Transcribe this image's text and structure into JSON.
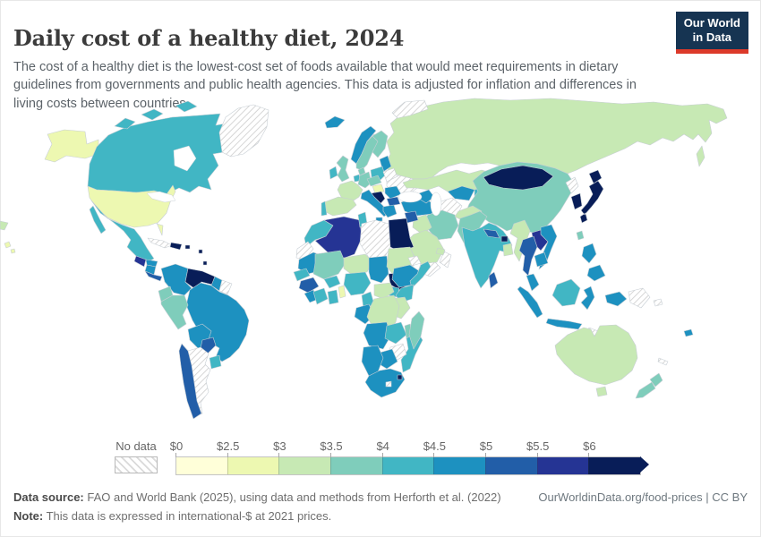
{
  "header": {
    "title": "Daily cost of a healthy diet, 2024",
    "subtitle": "The cost of a healthy diet is the lowest-cost set of foods available that would meet requirements in dietary guidelines from governments and public health agencies. This data is adjusted for inflation and differences in living costs between countries.",
    "logo": {
      "line1": "Our World",
      "line2": "in Data"
    }
  },
  "legend": {
    "no_data_label": "No data"
  },
  "footer": {
    "source_label": "Data source:",
    "source_text": " FAO and World Bank (2025), using data and methods from Herforth et al. (2022)",
    "note_label": "Note:",
    "note_text": " This data is expressed in international-$ at 2021 prices.",
    "link": "OurWorldinData.org/food-prices | CC BY"
  },
  "chart_data": {
    "type": "choropleth",
    "title": "Daily cost of a healthy diet, 2024",
    "unit": "international-$ per person per day, 2021 prices",
    "legend_position": "bottom",
    "no_data_color": "hatched-gray",
    "bins": [
      {
        "tick": "$0",
        "range": "$0–$2.5",
        "color": "#ffffd9"
      },
      {
        "tick": "$2.5",
        "range": "$2.5–$3",
        "color": "#edf8b1"
      },
      {
        "tick": "$3",
        "range": "$3–$3.5",
        "color": "#c7e9b4"
      },
      {
        "tick": "$3.5",
        "range": "$3.5–$4",
        "color": "#7fcdbb"
      },
      {
        "tick": "$4",
        "range": "$4–$4.5",
        "color": "#41b6c4"
      },
      {
        "tick": "$4.5",
        "range": "$4.5–$5",
        "color": "#1d91c0"
      },
      {
        "tick": "$5",
        "range": "$5–$5.5",
        "color": "#225ea8"
      },
      {
        "tick": "$5.5",
        "range": "$5.5–$6",
        "color": "#253494"
      },
      {
        "tick": "$6",
        "range": "$6+",
        "color": "#081d58"
      }
    ],
    "countries": {
      "usa": 2,
      "alaska": 2,
      "hawaii": 2,
      "canada": 5,
      "greenland": 0,
      "mexico": 5,
      "guatemala": 8,
      "honduras": 6,
      "nicaragua": 6,
      "costa-rica-panama": 7,
      "cuba": 0,
      "haiti-dominican": 9,
      "puerto-rico": 9,
      "lesser-antilles": 9,
      "colombia": 6,
      "venezuela": 9,
      "guyana": 6,
      "suriname": 0,
      "ecuador": 4,
      "peru": 4,
      "brazil": 6,
      "bolivia": 6,
      "paraguay": 7,
      "uruguay": 5,
      "chile": 7,
      "argentina": 0,
      "iceland": 6,
      "norway": 6,
      "sweden": 4,
      "finland": 4,
      "baltics": 6,
      "denmark": 4,
      "uk": 4,
      "ireland": 5,
      "benelux": 5,
      "germany": 4,
      "poland": 5,
      "belarus": 0,
      "ukraine": 0,
      "france": 3,
      "spain": 3,
      "portugal": 5,
      "austria-czech": 4,
      "hungary": 2,
      "romania": 6,
      "balkans": 9,
      "bulgaria": 7,
      "italy": 6,
      "greece": 6,
      "turkey": 6,
      "svalbard": 0,
      "russia": 3,
      "kazakhstan": 3,
      "uzbekistan": 6,
      "kyrgyzstan": 5,
      "turkmenistan": 0,
      "caucasus": 6,
      "china": 4,
      "mongolia": 9,
      "north-korea": 0,
      "south-korea": 9,
      "japan": 9,
      "taiwan": 4,
      "iran": 4,
      "iraq": 3,
      "syria": 7,
      "israel": 9,
      "saudi-arabia": 3,
      "yemen": 0,
      "oman": 0,
      "uae": 3,
      "afghanistan": 3,
      "pakistan": 4,
      "india": 5,
      "nepal": 7,
      "bhutan": 9,
      "bangladesh": 3,
      "sri-lanka": 7,
      "myanmar": 3,
      "thailand": 7,
      "laos": 8,
      "vietnam": 6,
      "cambodia": 6,
      "malaysia": 6,
      "indonesia": 6,
      "indonesia-borneo": 5,
      "timor": 0,
      "png": 0,
      "solomon": 0,
      "philippines": 6,
      "morocco": 5,
      "western-sahara": 0,
      "algeria": 8,
      "tunisia": 5,
      "libya": 0,
      "egypt": 9,
      "mauritania": 6,
      "senegal": 5,
      "guinea": 7,
      "sierra-leone-liberia": 6,
      "mali": 4,
      "burkina-faso": 5,
      "cote-divoire": 5,
      "ghana": 5,
      "benin-togo": 2,
      "niger": 3,
      "nigeria": 5,
      "chad": 6,
      "sudan": 3,
      "eritrea": 0,
      "south-sudan": 9,
      "ethiopia": 6,
      "somalia": 5,
      "uganda": 5,
      "kenya": 5,
      "tanzania": 3,
      "cameroon": 5,
      "central-african-republic": 3,
      "congo-gabon": 6,
      "drc": 3,
      "angola": 6,
      "zambia": 5,
      "malawi": 4,
      "mozambique": 5,
      "zimbabwe": 0,
      "botswana": 6,
      "namibia": 6,
      "south-africa": 6,
      "lesotho": 0,
      "eswatini": 9,
      "madagascar": 4,
      "australia": 3,
      "new-zealand": 4,
      "fiji": 6,
      "new-caledonia": 0
    }
  }
}
